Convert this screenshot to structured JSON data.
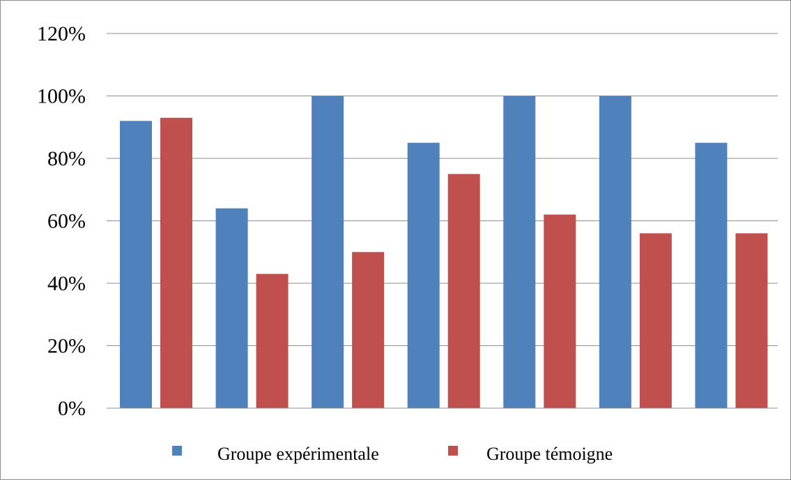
{
  "chart_data": {
    "type": "bar",
    "title": "",
    "xlabel": "",
    "ylabel": "",
    "categories": [
      "",
      "",
      "",
      "",
      "",
      "",
      ""
    ],
    "ylim": [
      0,
      120
    ],
    "yticks": [
      0,
      20,
      40,
      60,
      80,
      100,
      120
    ],
    "ytick_labels": [
      "0%",
      "20%",
      "40%",
      "60%",
      "80%",
      "100%",
      "120%"
    ],
    "grid": true,
    "legend_position": "bottom",
    "series": [
      {
        "name": "Groupe expérimentale",
        "color": "#4f81bd",
        "values": [
          92,
          64,
          100,
          85,
          100,
          100,
          85
        ]
      },
      {
        "name": "Groupe témoigne",
        "color": "#c0504d",
        "values": [
          93,
          43,
          50,
          75,
          62,
          56,
          56
        ]
      }
    ]
  }
}
